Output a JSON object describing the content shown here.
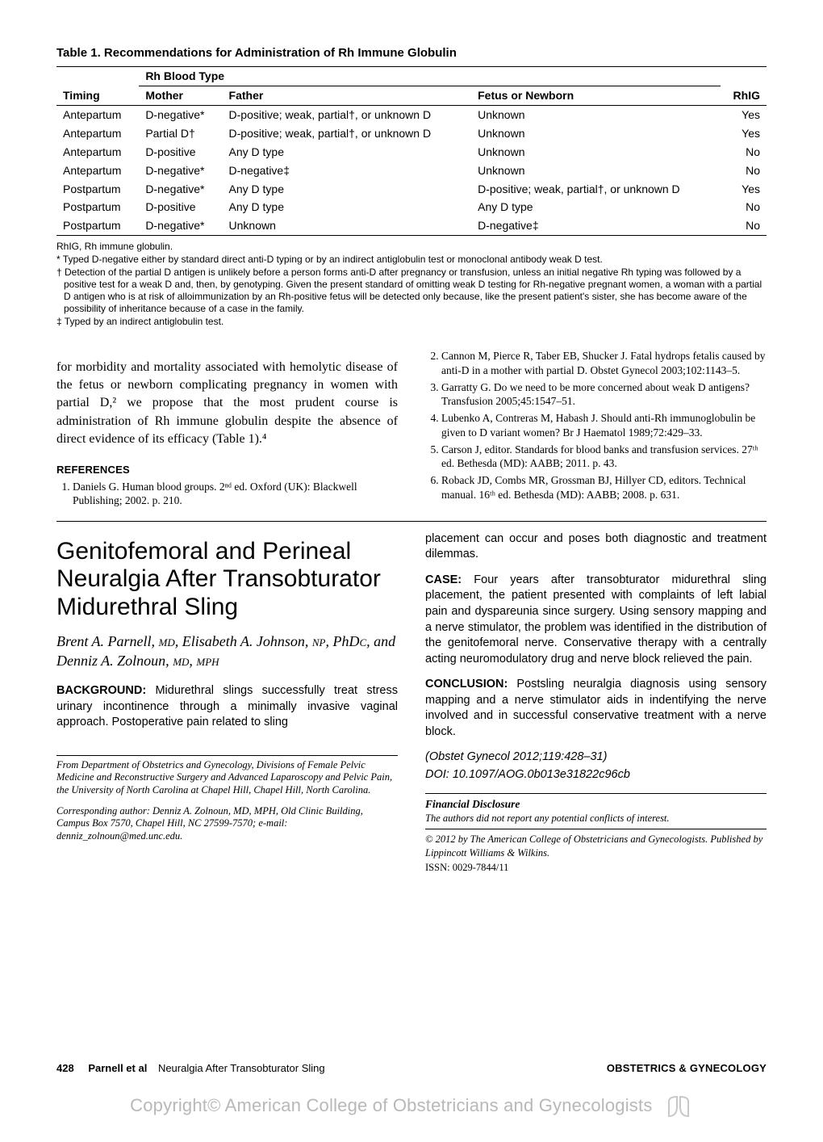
{
  "table": {
    "title": "Table 1. Recommendations for Administration of Rh Immune Globulin",
    "super_header": "Rh Blood Type",
    "columns": [
      "Timing",
      "Mother",
      "Father",
      "Fetus or Newborn",
      "RhIG"
    ],
    "rows": [
      [
        "Antepartum",
        "D-negative*",
        "D-positive; weak, partial†, or unknown D",
        "Unknown",
        "Yes"
      ],
      [
        "Antepartum",
        "Partial D†",
        "D-positive; weak, partial†, or unknown D",
        "Unknown",
        "Yes"
      ],
      [
        "Antepartum",
        "D-positive",
        "Any D type",
        "Unknown",
        "No"
      ],
      [
        "Antepartum",
        "D-negative*",
        "D-negative‡",
        "Unknown",
        "No"
      ],
      [
        "Postpartum",
        "D-negative*",
        "Any D type",
        "D-positive; weak, partial†, or unknown D",
        "Yes"
      ],
      [
        "Postpartum",
        "D-positive",
        "Any D type",
        "Any D type",
        "No"
      ],
      [
        "Postpartum",
        "D-negative*",
        "Unknown",
        "D-negative‡",
        "No"
      ]
    ],
    "footnotes": {
      "abbr": "RhIG, Rh immune globulin.",
      "star": "* Typed D-negative either by standard direct anti-D typing or by an indirect antiglobulin test or monoclonal antibody weak D test.",
      "dagger": "† Detection of the partial D antigen is unlikely before a person forms anti-D after pregnancy or transfusion, unless an initial negative Rh typing was followed by a positive test for a weak D and, then, by genotyping. Given the present standard of omitting weak D testing for Rh-negative pregnant women, a woman with a partial D antigen who is at risk of alloimmunization by an Rh-positive fetus will be detected only because, like the present patient's sister, she has become aware of the possibility of inheritance because of a case in the family.",
      "ddagger": "‡ Typed by an indirect antiglobulin test."
    }
  },
  "upper_left_para": "for morbidity and mortality associated with hemolytic disease of the fetus or newborn complicating pregnancy in women with partial D,² we propose that the most prudent course is administration of Rh immune globulin despite the absence of direct evidence of its efficacy (Table 1).⁴",
  "refs_heading": "REFERENCES",
  "refs_left": [
    "Daniels G. Human blood groups. 2ⁿᵈ ed. Oxford (UK): Blackwell Publishing; 2002. p. 210."
  ],
  "refs_right": [
    "Cannon M, Pierce R, Taber EB, Shucker J. Fatal hydrops fetalis caused by anti-D in a mother with partial D. Obstet Gynecol 2003;102:1143–5.",
    "Garratty G. Do we need to be more concerned about weak D antigens? Transfusion 2005;45:1547–51.",
    "Lubenko A, Contreras M, Habash J. Should anti-Rh immunoglobulin be given to D variant women? Br J Haematol 1989;72:429–33.",
    "Carson J, editor. Standards for blood banks and transfusion services. 27ᵗʰ ed. Bethesda (MD): AABB; 2011. p. 43.",
    "Roback JD, Combs MR, Grossman BJ, Hillyer CD, editors. Technical manual. 16ᵗʰ ed. Bethesda (MD): AABB; 2008. p. 631."
  ],
  "article": {
    "title": "Genitofemoral and Perineal Neuralgia After Transobturator Midurethral Sling",
    "authors_html": "Brent A. Parnell, MD, Elisabeth A. Johnson, NP, PhDc, and Denniz A. Zolnoun, MD, MPH",
    "background_lead": "BACKGROUND:",
    "background": "Midurethral slings successfully treat stress urinary incontinence through a minimally invasive vaginal approach. Postoperative pain related to sling",
    "affiliation": "From Department of Obstetrics and Gynecology, Divisions of Female Pelvic Medicine and Reconstructive Surgery and Advanced Laparoscopy and Pelvic Pain, the University of North Carolina at Chapel Hill, Chapel Hill, North Carolina.",
    "corresponding": "Corresponding author: Denniz A. Zolnoun, MD, MPH, Old Clinic Building, Campus Box 7570, Chapel Hill, NC 27599-7570; e-mail: denniz_zolnoun@med.unc.edu.",
    "placement_cont": "placement can occur and poses both diagnostic and treatment dilemmas.",
    "case_lead": "CASE:",
    "case": "Four years after transobturator midurethral sling placement, the patient presented with complaints of left labial pain and dyspareunia since surgery. Using sensory mapping and a nerve stimulator, the problem was identified in the distribution of the genitofemoral nerve. Conservative therapy with a centrally acting neuromodulatory drug and nerve block relieved the pain.",
    "concl_lead": "CONCLUSION:",
    "conclusion": "Postsling neuralgia diagnosis using sensory mapping and a nerve stimulator aids in indentifying the nerve involved and in successful conservative treatment with a nerve block.",
    "citation": "(Obstet Gynecol 2012;119:428–31)",
    "doi": "DOI: 10.1097/AOG.0b013e31822c96cb",
    "fin_head": "Financial Disclosure",
    "fin_body": "The authors did not report any potential conflicts of interest.",
    "copyright": "© 2012 by The American College of Obstetricians and Gynecologists. Published by Lippincott Williams & Wilkins.",
    "issn": "ISSN: 0029-7844/11"
  },
  "footer": {
    "page": "428",
    "authors": "Parnell et al",
    "short": "Neuralgia After Transobturator Sling",
    "journal": "OBSTETRICS & GYNECOLOGY"
  },
  "watermark": "Copyright© American College of Obstetricians and Gynecologists"
}
